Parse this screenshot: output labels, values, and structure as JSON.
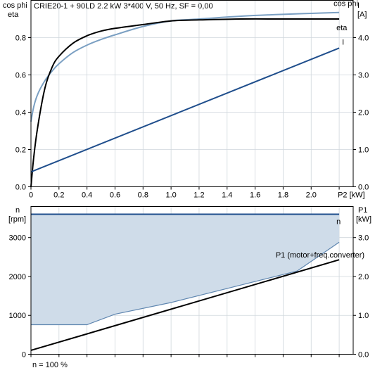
{
  "header": {
    "left_label_line1": "cos phi",
    "left_label_line2": "eta",
    "title": "CRIE20-1 + 90LD   2.2 kW   3*400 V, 50 Hz, SF = 0,00",
    "right_label_line1": "I",
    "right_label_line2": "[A]"
  },
  "footer": {
    "note": "n = 100 %"
  },
  "colors": {
    "eta": "#000000",
    "cosphi": "#7a9fc2",
    "current": "#1f4e8c",
    "speed": "#1f4e8c",
    "speed_fill": "#cfdce9",
    "p1": "#000000"
  },
  "chart_data": [
    {
      "type": "line",
      "x_label": "P2 [kW]",
      "xlim": [
        0,
        2.3
      ],
      "x_ticks": [
        "0",
        "0.2",
        "0.4",
        "0.6",
        "0.8",
        "1.0",
        "1.2",
        "1.4",
        "1.6",
        "1.8",
        "2.0",
        "P2 [kW]"
      ],
      "x_tick_values": [
        0,
        0.2,
        0.4,
        0.6,
        0.8,
        1.0,
        1.2,
        1.4,
        1.6,
        1.8,
        2.0,
        2.2
      ],
      "y_left": {
        "label_line1": "cos phi",
        "label_line2": "eta",
        "lim": [
          0,
          1.0
        ],
        "ticks": [
          "0.0",
          "0.2",
          "0.4",
          "0.6",
          "0.8"
        ],
        "tick_values": [
          0,
          0.2,
          0.4,
          0.6,
          0.8
        ]
      },
      "y_right": {
        "label_line1": "I",
        "label_line2": "[A]",
        "lim": [
          0,
          5.0
        ],
        "ticks": [
          "0.0",
          "1.0",
          "2.0",
          "3.0",
          "4.0"
        ],
        "tick_values": [
          0,
          1,
          2,
          3,
          4
        ]
      },
      "grid": true,
      "series": [
        {
          "name": "eta",
          "axis": "left",
          "x": [
            0,
            0.02,
            0.05,
            0.1,
            0.15,
            0.2,
            0.3,
            0.4,
            0.5,
            0.6,
            0.8,
            1.0,
            1.2,
            1.5,
            1.8,
            2.0,
            2.2
          ],
          "y": [
            0.0,
            0.16,
            0.33,
            0.53,
            0.64,
            0.7,
            0.77,
            0.81,
            0.835,
            0.85,
            0.87,
            0.89,
            0.895,
            0.9,
            0.9,
            0.9,
            0.9
          ]
        },
        {
          "name": "cos phi",
          "axis": "left",
          "x": [
            0,
            0.02,
            0.05,
            0.1,
            0.15,
            0.2,
            0.3,
            0.4,
            0.5,
            0.6,
            0.8,
            1.0,
            1.2,
            1.5,
            1.8,
            2.0,
            2.2
          ],
          "y": [
            0.35,
            0.43,
            0.5,
            0.57,
            0.62,
            0.66,
            0.72,
            0.76,
            0.79,
            0.815,
            0.86,
            0.89,
            0.9,
            0.915,
            0.925,
            0.93,
            0.935
          ]
        },
        {
          "name": "I",
          "axis": "right",
          "x": [
            0,
            2.2
          ],
          "y": [
            0.4,
            3.72
          ]
        }
      ]
    },
    {
      "type": "area",
      "x_label": "",
      "xlim": [
        0,
        2.3
      ],
      "y_left": {
        "label_line1": "n",
        "label_line2": "[rpm]",
        "lim": [
          0,
          3800
        ],
        "ticks": [
          "0",
          "1000",
          "2000",
          "3000"
        ],
        "tick_values": [
          0,
          1000,
          2000,
          3000
        ]
      },
      "y_right": {
        "label_line1": "P1",
        "label_line2": "[kW]",
        "lim": [
          0,
          3.8
        ],
        "ticks": [
          "0.0",
          "1.0",
          "2.0",
          "3.0"
        ],
        "tick_values": [
          0,
          1,
          2,
          3
        ]
      },
      "grid": true,
      "series": [
        {
          "name": "n",
          "axis": "left",
          "x": [
            0,
            2.2
          ],
          "y": [
            3600,
            3600
          ]
        },
        {
          "name": "n min",
          "axis": "left",
          "x": [
            0,
            0.4,
            0.6,
            1.0,
            1.5,
            1.9,
            2.2
          ],
          "y": [
            760,
            760,
            1030,
            1330,
            1780,
            2140,
            2880
          ]
        },
        {
          "name": "P1 (motor+freq.converter)",
          "axis": "right",
          "x": [
            0,
            2.2
          ],
          "y": [
            0.1,
            2.43
          ]
        }
      ]
    }
  ]
}
